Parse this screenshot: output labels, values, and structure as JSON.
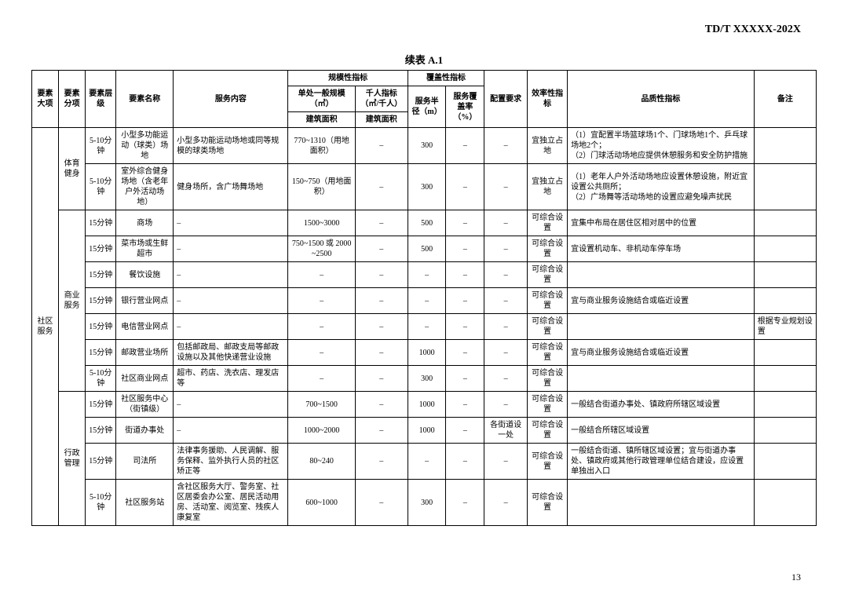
{
  "doc_id": "TD/T  XXXXX-202X",
  "table_title": "续表 A.1",
  "page_number": "13",
  "headers": {
    "h1": "要素大项",
    "h2": "要素分项",
    "h3": "要素层级",
    "h4": "要素名称",
    "h5": "服务内容",
    "h6_group": "规模性指标",
    "h6a": "单处一般规模（㎡）",
    "h6b": "千人指标（㎡/千人）",
    "h6a_sub": "建筑面积",
    "h6b_sub": "建筑面积",
    "h7_group": "覆盖性指标",
    "h7a": "服务半径（m）",
    "h7b": "服务覆盖率（%）",
    "h8": "配置要求",
    "h9": "效率性指标",
    "h10": "品质性指标",
    "h11": "备注"
  },
  "major_cat": "社区服务",
  "rows": [
    {
      "sub_cat": "体育健身",
      "sub_rowspan": 2,
      "level": "5-10分钟",
      "name": "小型多功能运动（球类）场地",
      "content": "小型多功能运动场地或同等规模的球类场地",
      "scale": "770~1310（用地面积）",
      "per1000": "–",
      "radius": "300",
      "coverage": "–",
      "config": "–",
      "eff": "宜独立占地",
      "quality": "（1）宜配置半场篮球场1个、门球场地1个、乒乓球场地2个；\n（2）门球活动场地应提供休憩服务和安全防护措施",
      "note": ""
    },
    {
      "level": "5-10分钟",
      "name": "室外综合健身场地（含老年户外活动场地）",
      "content": "健身场所，含广场舞场地",
      "scale": "150~750（用地面积）",
      "per1000": "–",
      "radius": "300",
      "coverage": "–",
      "config": "–",
      "eff": "宜独立占地",
      "quality": "（1）老年人户外活动场地应设置休憩设施，附近宜设置公共厕所；\n（2）广场舞等活动场地的设置应避免噪声扰民",
      "note": ""
    },
    {
      "sub_cat": "商业服务",
      "sub_rowspan": 7,
      "level": "15分钟",
      "name": "商场",
      "content": "–",
      "scale": "1500~3000",
      "per1000": "–",
      "radius": "500",
      "coverage": "–",
      "config": "–",
      "eff": "可综合设置",
      "quality": "宜集中布局在居住区相对居中的位置",
      "note": ""
    },
    {
      "level": "15分钟",
      "name": "菜市场或生鲜超市",
      "content": "–",
      "scale": "750~1500 或 2000~2500",
      "per1000": "–",
      "radius": "500",
      "coverage": "–",
      "config": "–",
      "eff": "可综合设置",
      "quality": "宜设置机动车、非机动车停车场",
      "note": ""
    },
    {
      "level": "15分钟",
      "name": "餐饮设施",
      "content": "–",
      "scale": "–",
      "per1000": "–",
      "radius": "–",
      "coverage": "–",
      "config": "–",
      "eff": "可综合设置",
      "quality": "",
      "note": ""
    },
    {
      "level": "15分钟",
      "name": "银行营业网点",
      "content": "–",
      "scale": "–",
      "per1000": "–",
      "radius": "–",
      "coverage": "–",
      "config": "–",
      "eff": "可综合设置",
      "quality": "宜与商业服务设施结合或临近设置",
      "note": ""
    },
    {
      "level": "15分钟",
      "name": "电信营业网点",
      "content": "–",
      "scale": "–",
      "per1000": "–",
      "radius": "–",
      "coverage": "–",
      "config": "–",
      "eff": "可综合设置",
      "quality": "",
      "note": "根据专业规划设置"
    },
    {
      "level": "15分钟",
      "name": "邮政营业场所",
      "content": "包括邮政局、邮政支局等邮政设施以及其他快递营业设施",
      "scale": "–",
      "per1000": "–",
      "radius": "1000",
      "coverage": "–",
      "config": "–",
      "eff": "可综合设置",
      "quality": "宜与商业服务设施结合或临近设置",
      "note": ""
    },
    {
      "level": "5-10分钟",
      "name": "社区商业网点",
      "content": "超市、药店、洗衣店、理发店等",
      "scale": "–",
      "per1000": "–",
      "radius": "300",
      "coverage": "–",
      "config": "–",
      "eff": "可综合设置",
      "quality": "",
      "note": ""
    },
    {
      "sub_cat": "行政管理",
      "sub_rowspan": 4,
      "level": "15分钟",
      "name": "社区服务中心（街镇级）",
      "content": "–",
      "scale": "700~1500",
      "per1000": "–",
      "radius": "1000",
      "coverage": "–",
      "config": "–",
      "eff": "可综合设置",
      "quality": "一般结合街道办事处、镇政府所辖区域设置",
      "note": ""
    },
    {
      "level": "15分钟",
      "name": "街道办事处",
      "content": "–",
      "scale": "1000~2000",
      "per1000": "–",
      "radius": "1000",
      "coverage": "–",
      "config": "各街道设一处",
      "eff": "可综合设置",
      "quality": "一般结合所辖区域设置",
      "note": ""
    },
    {
      "level": "15分钟",
      "name": "司法所",
      "content": "法律事务援助、人民调解、服务保释、监外执行人员的社区矫正等",
      "scale": "80~240",
      "per1000": "–",
      "radius": "–",
      "coverage": "–",
      "config": "–",
      "eff": "可综合设置",
      "quality": "一般结合街道、镇所辖区域设置；宜与街道办事处、镇政府或其他行政管理单位结合建设，应设置单独出入口",
      "note": ""
    },
    {
      "level": "5-10分钟",
      "name": "社区服务站",
      "content": "含社区服务大厅、警务室、社区居委会办公室、居民活动用房、活动室、阅览室、残疾人康复室",
      "scale": "600~1000",
      "per1000": "–",
      "radius": "300",
      "coverage": "–",
      "config": "–",
      "eff": "可综合设置",
      "quality": "",
      "note": ""
    }
  ],
  "col_widths": [
    "28px",
    "28px",
    "32px",
    "60px",
    "120px",
    "70px",
    "55px",
    "40px",
    "40px",
    "45px",
    "42px",
    "195px",
    "65px"
  ]
}
